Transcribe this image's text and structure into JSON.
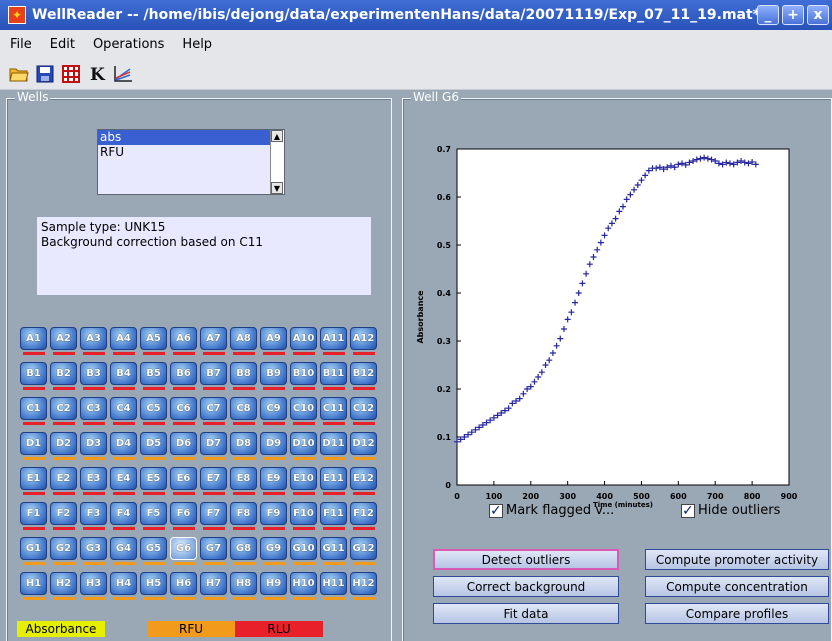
{
  "window": {
    "title": "WellReader -- /home/ibis/dejong/data/experimentenHans/data/20071119/Exp_07_11_19.mat*",
    "controls": [
      "_",
      "+",
      "x"
    ]
  },
  "menu": [
    "File",
    "Edit",
    "Operations",
    "Help"
  ],
  "toolbar": [
    "open-icon",
    "save-icon",
    "grid-icon",
    "k-icon",
    "plot-icon"
  ],
  "wells_panel": {
    "title": "Wells",
    "list": {
      "items": [
        "abs",
        "RFU"
      ],
      "selected": 0
    },
    "info": {
      "line1": "Sample type: UNK15",
      "line2": "Background correction based on C11"
    },
    "rows": [
      "A",
      "B",
      "C",
      "D",
      "E",
      "F",
      "G",
      "H"
    ],
    "cols": 12,
    "selected_well": "G6",
    "legend": [
      {
        "label": "Absorbance",
        "color": "#e6ef00"
      },
      {
        "label": "RFU",
        "color": "#f19a1c"
      },
      {
        "label": "RLU",
        "color": "#e8202a"
      }
    ],
    "bar_colors": {
      "A": "#e8202a",
      "B": "#e8202a",
      "C": "#e8202a",
      "D": "#f19a1c",
      "E": "#e8202a",
      "F": "#e8202a",
      "G": "#f19a1c",
      "H": "#f19a1c"
    }
  },
  "well_panel": {
    "title": "Well G6",
    "mark_flagged_label": "Mark flagged v...",
    "hide_outliers_label": "Hide outliers",
    "buttons": {
      "detect_outliers": "Detect outliers",
      "correct_background": "Correct background",
      "fit_data": "Fit data",
      "compute_promoter": "Compute promoter activity",
      "compute_concentration": "Compute concentration",
      "compare_profiles": "Compare profiles"
    }
  },
  "chart_data": {
    "type": "scatter",
    "xlabel": "Time (minutes)",
    "ylabel": "Absorbance",
    "xlim": [
      0,
      900
    ],
    "ylim": [
      0,
      0.7
    ],
    "xticks": [
      0,
      100,
      200,
      300,
      400,
      500,
      600,
      700,
      800,
      900
    ],
    "yticks": [
      0,
      0.1,
      0.2,
      0.3,
      0.4,
      0.5,
      0.6,
      0.7
    ],
    "marker_color": "#2626a0",
    "x": [
      0,
      10,
      20,
      30,
      40,
      50,
      60,
      70,
      80,
      90,
      100,
      110,
      120,
      130,
      140,
      150,
      160,
      170,
      180,
      190,
      200,
      210,
      220,
      230,
      240,
      250,
      260,
      270,
      280,
      290,
      300,
      310,
      320,
      330,
      340,
      350,
      360,
      370,
      380,
      390,
      400,
      410,
      420,
      430,
      440,
      450,
      460,
      470,
      480,
      490,
      500,
      510,
      520,
      530,
      540,
      550,
      560,
      570,
      580,
      590,
      600,
      610,
      620,
      630,
      640,
      650,
      660,
      670,
      680,
      690,
      700,
      710,
      720,
      730,
      740,
      750,
      760,
      770,
      780,
      790,
      800,
      810
    ],
    "y": [
      0.09,
      0.095,
      0.1,
      0.105,
      0.11,
      0.115,
      0.12,
      0.125,
      0.13,
      0.135,
      0.14,
      0.145,
      0.15,
      0.155,
      0.16,
      0.17,
      0.175,
      0.18,
      0.19,
      0.2,
      0.205,
      0.215,
      0.225,
      0.235,
      0.25,
      0.26,
      0.275,
      0.29,
      0.305,
      0.325,
      0.345,
      0.36,
      0.38,
      0.4,
      0.42,
      0.44,
      0.46,
      0.475,
      0.49,
      0.505,
      0.52,
      0.535,
      0.545,
      0.555,
      0.57,
      0.58,
      0.595,
      0.605,
      0.615,
      0.625,
      0.635,
      0.645,
      0.655,
      0.66,
      0.66,
      0.662,
      0.658,
      0.662,
      0.665,
      0.662,
      0.668,
      0.67,
      0.667,
      0.672,
      0.675,
      0.678,
      0.68,
      0.682,
      0.68,
      0.678,
      0.675,
      0.67,
      0.668,
      0.672,
      0.67,
      0.668,
      0.672,
      0.675,
      0.672,
      0.67,
      0.673,
      0.668
    ]
  }
}
